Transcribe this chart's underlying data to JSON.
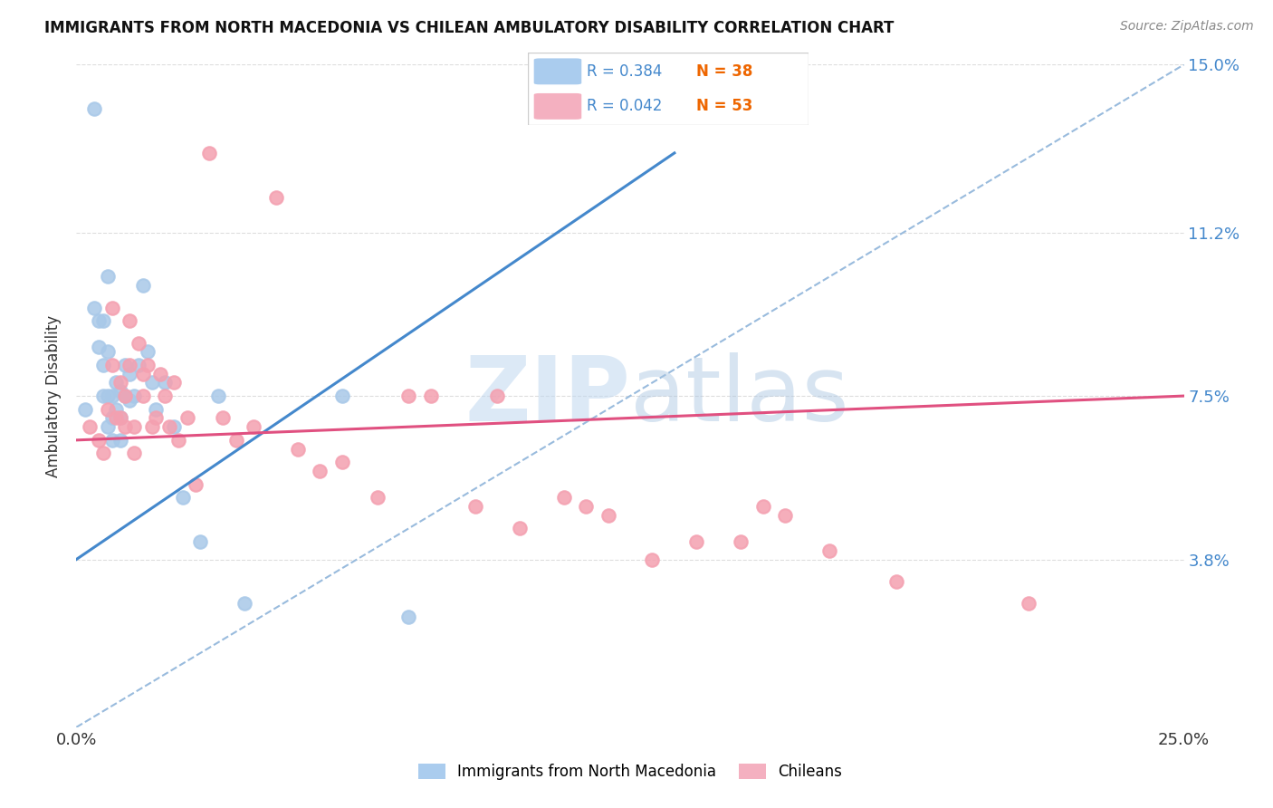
{
  "title": "IMMIGRANTS FROM NORTH MACEDONIA VS CHILEAN AMBULATORY DISABILITY CORRELATION CHART",
  "source": "Source: ZipAtlas.com",
  "ylabel_label": "Ambulatory Disability",
  "watermark_ZIP": "ZIP",
  "watermark_atlas": "atlas",
  "legend_blue_R": "0.384",
  "legend_blue_N": "38",
  "legend_pink_R": "0.042",
  "legend_pink_N": "53",
  "legend_label_blue": "Immigrants from North Macedonia",
  "legend_label_pink": "Chileans",
  "blue_scatter_color": "#a8c8e8",
  "pink_scatter_color": "#f4a0b0",
  "blue_line_color": "#4488cc",
  "pink_line_color": "#e05080",
  "dashed_line_color": "#99bbdd",
  "legend_box_blue": "#aaccee",
  "legend_box_pink": "#f4b0c0",
  "text_blue": "#4488cc",
  "text_orange": "#ee8800",
  "text_dark": "#333333",
  "text_gray": "#888888",
  "grid_color": "#dddddd",
  "xlim": [
    0.0,
    0.25
  ],
  "ylim": [
    0.0,
    0.15
  ],
  "x_tick_positions": [
    0.0,
    0.05,
    0.1,
    0.15,
    0.2,
    0.25
  ],
  "x_tick_labels": [
    "0.0%",
    "",
    "",
    "",
    "",
    "25.0%"
  ],
  "y_tick_positions": [
    0.038,
    0.075,
    0.112,
    0.15
  ],
  "y_tick_labels": [
    "3.8%",
    "7.5%",
    "11.2%",
    "15.0%"
  ],
  "blue_scatter_x": [
    0.002,
    0.004,
    0.004,
    0.005,
    0.005,
    0.006,
    0.006,
    0.006,
    0.007,
    0.007,
    0.007,
    0.007,
    0.008,
    0.008,
    0.008,
    0.009,
    0.009,
    0.01,
    0.01,
    0.01,
    0.011,
    0.011,
    0.012,
    0.012,
    0.013,
    0.014,
    0.015,
    0.016,
    0.017,
    0.018,
    0.02,
    0.022,
    0.024,
    0.028,
    0.032,
    0.038,
    0.06,
    0.075
  ],
  "blue_scatter_y": [
    0.072,
    0.14,
    0.095,
    0.092,
    0.086,
    0.092,
    0.082,
    0.075,
    0.102,
    0.085,
    0.075,
    0.068,
    0.075,
    0.07,
    0.065,
    0.078,
    0.072,
    0.076,
    0.07,
    0.065,
    0.082,
    0.075,
    0.08,
    0.074,
    0.075,
    0.082,
    0.1,
    0.085,
    0.078,
    0.072,
    0.078,
    0.068,
    0.052,
    0.042,
    0.075,
    0.028,
    0.075,
    0.025
  ],
  "pink_scatter_x": [
    0.003,
    0.005,
    0.006,
    0.007,
    0.008,
    0.008,
    0.009,
    0.01,
    0.01,
    0.011,
    0.011,
    0.012,
    0.012,
    0.013,
    0.013,
    0.014,
    0.015,
    0.015,
    0.016,
    0.017,
    0.018,
    0.019,
    0.02,
    0.021,
    0.022,
    0.023,
    0.025,
    0.027,
    0.03,
    0.033,
    0.036,
    0.04,
    0.045,
    0.05,
    0.055,
    0.06,
    0.068,
    0.075,
    0.08,
    0.09,
    0.095,
    0.1,
    0.11,
    0.115,
    0.12,
    0.13,
    0.14,
    0.15,
    0.155,
    0.16,
    0.17,
    0.185,
    0.215
  ],
  "pink_scatter_y": [
    0.068,
    0.065,
    0.062,
    0.072,
    0.095,
    0.082,
    0.07,
    0.078,
    0.07,
    0.075,
    0.068,
    0.092,
    0.082,
    0.068,
    0.062,
    0.087,
    0.08,
    0.075,
    0.082,
    0.068,
    0.07,
    0.08,
    0.075,
    0.068,
    0.078,
    0.065,
    0.07,
    0.055,
    0.13,
    0.07,
    0.065,
    0.068,
    0.12,
    0.063,
    0.058,
    0.06,
    0.052,
    0.075,
    0.075,
    0.05,
    0.075,
    0.045,
    0.052,
    0.05,
    0.048,
    0.038,
    0.042,
    0.042,
    0.05,
    0.048,
    0.04,
    0.033,
    0.028
  ],
  "blue_trend_x": [
    0.0,
    0.135
  ],
  "blue_trend_y": [
    0.038,
    0.13
  ],
  "pink_trend_x": [
    0.0,
    0.25
  ],
  "pink_trend_y": [
    0.065,
    0.075
  ],
  "diag_line_x": [
    0.0,
    0.25
  ],
  "diag_line_y": [
    0.0,
    0.15
  ]
}
